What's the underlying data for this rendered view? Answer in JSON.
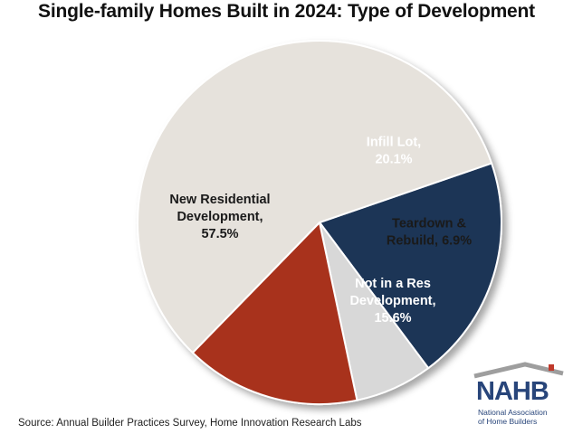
{
  "chart_data": {
    "type": "pie",
    "title": "Single-family Homes Built in 2024: Type of Development",
    "slices": [
      {
        "label_lines": [
          "Infill Lot,",
          "20.1%"
        ],
        "category": "Infill Lot",
        "value": 20.1,
        "color": "#1f3557",
        "label_color": "#ffffff"
      },
      {
        "label_lines": [
          "Teardown &",
          "Rebuild, 6.9%"
        ],
        "category": "Teardown & Rebuild",
        "value": 6.9,
        "color": "#d8d8d8",
        "label_color": "#1a1a1a"
      },
      {
        "label_lines": [
          "Not in a Res",
          "Development,",
          "15.6%"
        ],
        "category": "Not in a Res Development",
        "value": 15.6,
        "color": "#a8321e",
        "label_color": "#ffffff"
      },
      {
        "label_lines": [
          "New Residential",
          "Development,",
          "57.5%"
        ],
        "category": "New Residential Development",
        "value": 57.5,
        "color": "#e6e2dc",
        "label_color": "#1a1a1a"
      }
    ]
  },
  "source": "Source: Annual Builder Practices Survey, Home Innovation Research Labs",
  "logo": {
    "letters": "NAHB",
    "subtitle_line1": "National Association",
    "subtitle_line2": "of Home Builders",
    "colors": {
      "text": "#28457a",
      "roof": "#9e9e9e",
      "accent": "#c0392b"
    }
  }
}
